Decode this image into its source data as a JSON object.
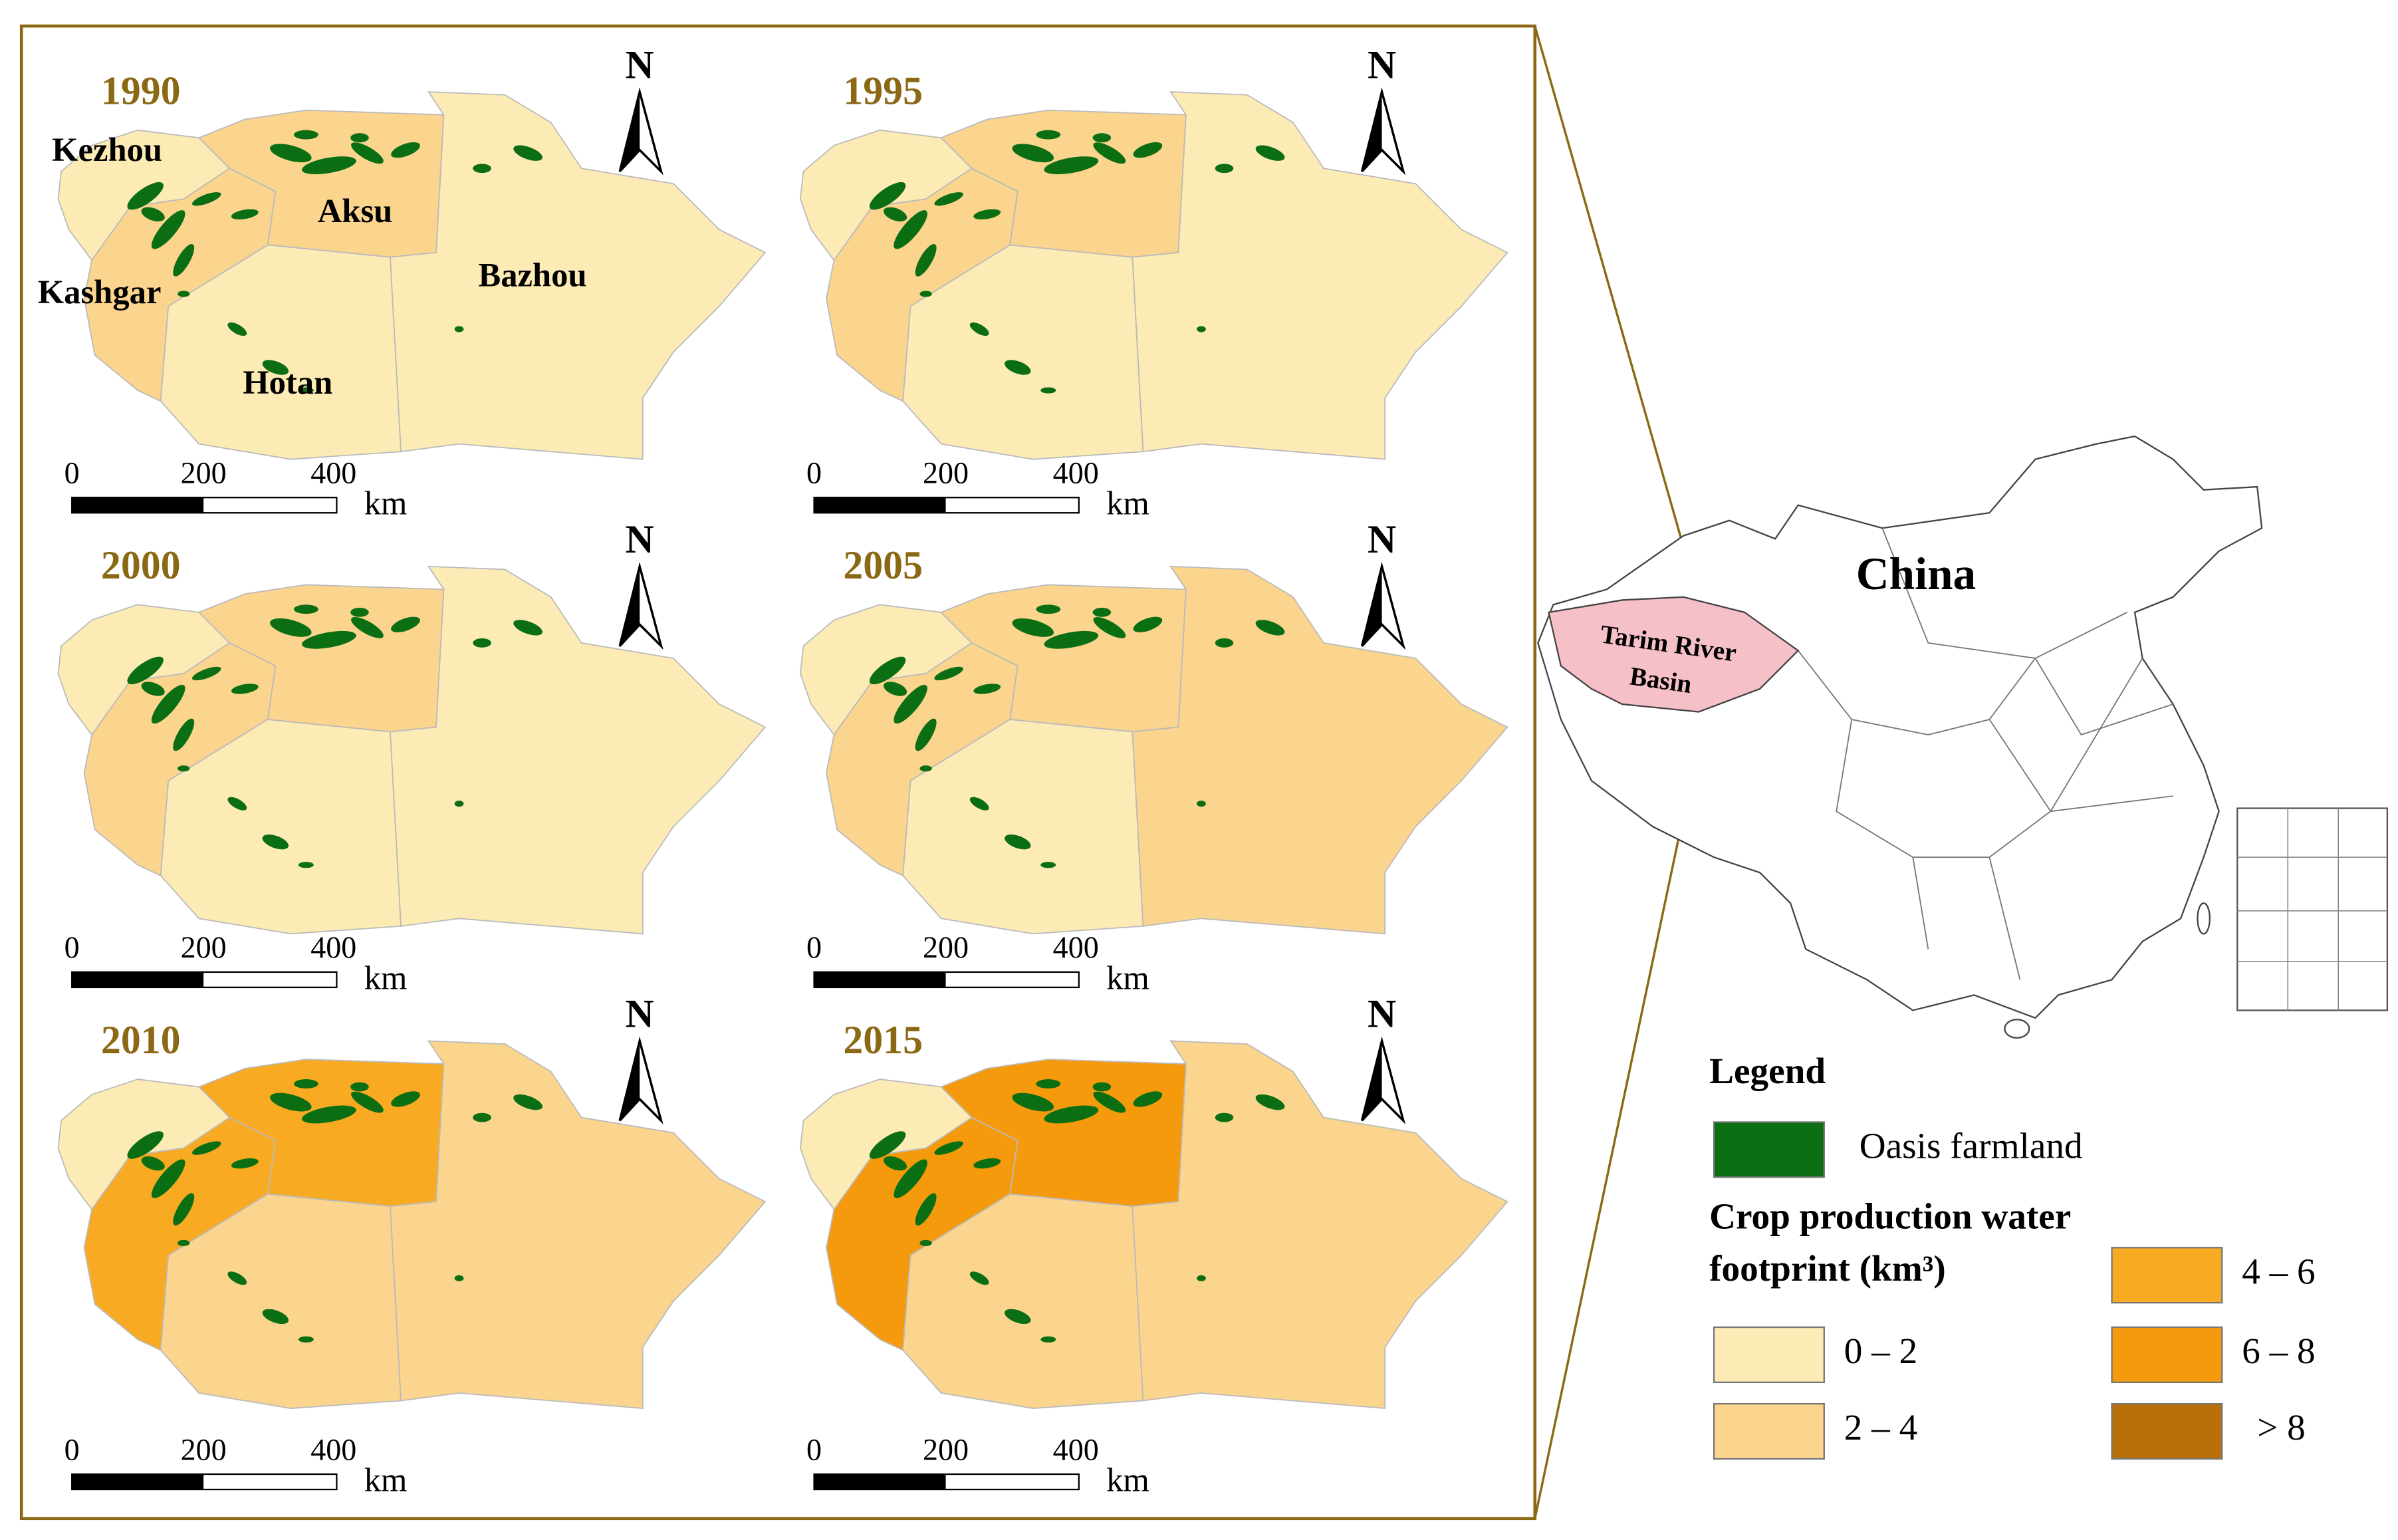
{
  "panels": [
    {
      "year": "1990",
      "fills": [
        "#fdebb6",
        "#fbd48e",
        "#fbd48e",
        "#fdebb6",
        "#fdebb6"
      ]
    },
    {
      "year": "1995",
      "fills": [
        "#fdebb6",
        "#fbd48e",
        "#fbd48e",
        "#fdebb6",
        "#fdebb6"
      ]
    },
    {
      "year": "2000",
      "fills": [
        "#fdebb6",
        "#fbd48e",
        "#fbd48e",
        "#fdebb6",
        "#fdebb6"
      ]
    },
    {
      "year": "2005",
      "fills": [
        "#fdebb6",
        "#fbd48e",
        "#fbd48e",
        "#fdebb6",
        "#fbd48e"
      ]
    },
    {
      "year": "2010",
      "fills": [
        "#fdebb6",
        "#f8aa22",
        "#f8aa22",
        "#fbd48e",
        "#fbd48e"
      ]
    },
    {
      "year": "2015",
      "fills": [
        "#fdebb6",
        "#f59a0c",
        "#f59a0c",
        "#fbd48e",
        "#fbd48e"
      ]
    }
  ],
  "region_labels": [
    "Kezhou",
    "Kashgar",
    "Aksu",
    "Hotan",
    "Bazhou"
  ],
  "north": "N",
  "scale_bar": {
    "ticks": [
      "0",
      "200",
      "400"
    ],
    "unit": "km"
  },
  "inset": {
    "country": "China",
    "basin": [
      "Tarim River",
      "Basin"
    ]
  },
  "legend": {
    "title": "Legend",
    "farmland": {
      "label": "Oasis farmland",
      "color": "#0b6e12"
    },
    "class_title": [
      "Crop production water",
      "footprint (km³)"
    ],
    "classes": [
      {
        "label": "0 – 2",
        "color": "#fdebb6"
      },
      {
        "label": "2 – 4",
        "color": "#fbd48e"
      },
      {
        "label": "4 – 6",
        "color": "#f8aa22"
      },
      {
        "label": "6 – 8",
        "color": "#f59a0c"
      },
      {
        "label": "> 8",
        "color": "#b97008"
      }
    ]
  }
}
